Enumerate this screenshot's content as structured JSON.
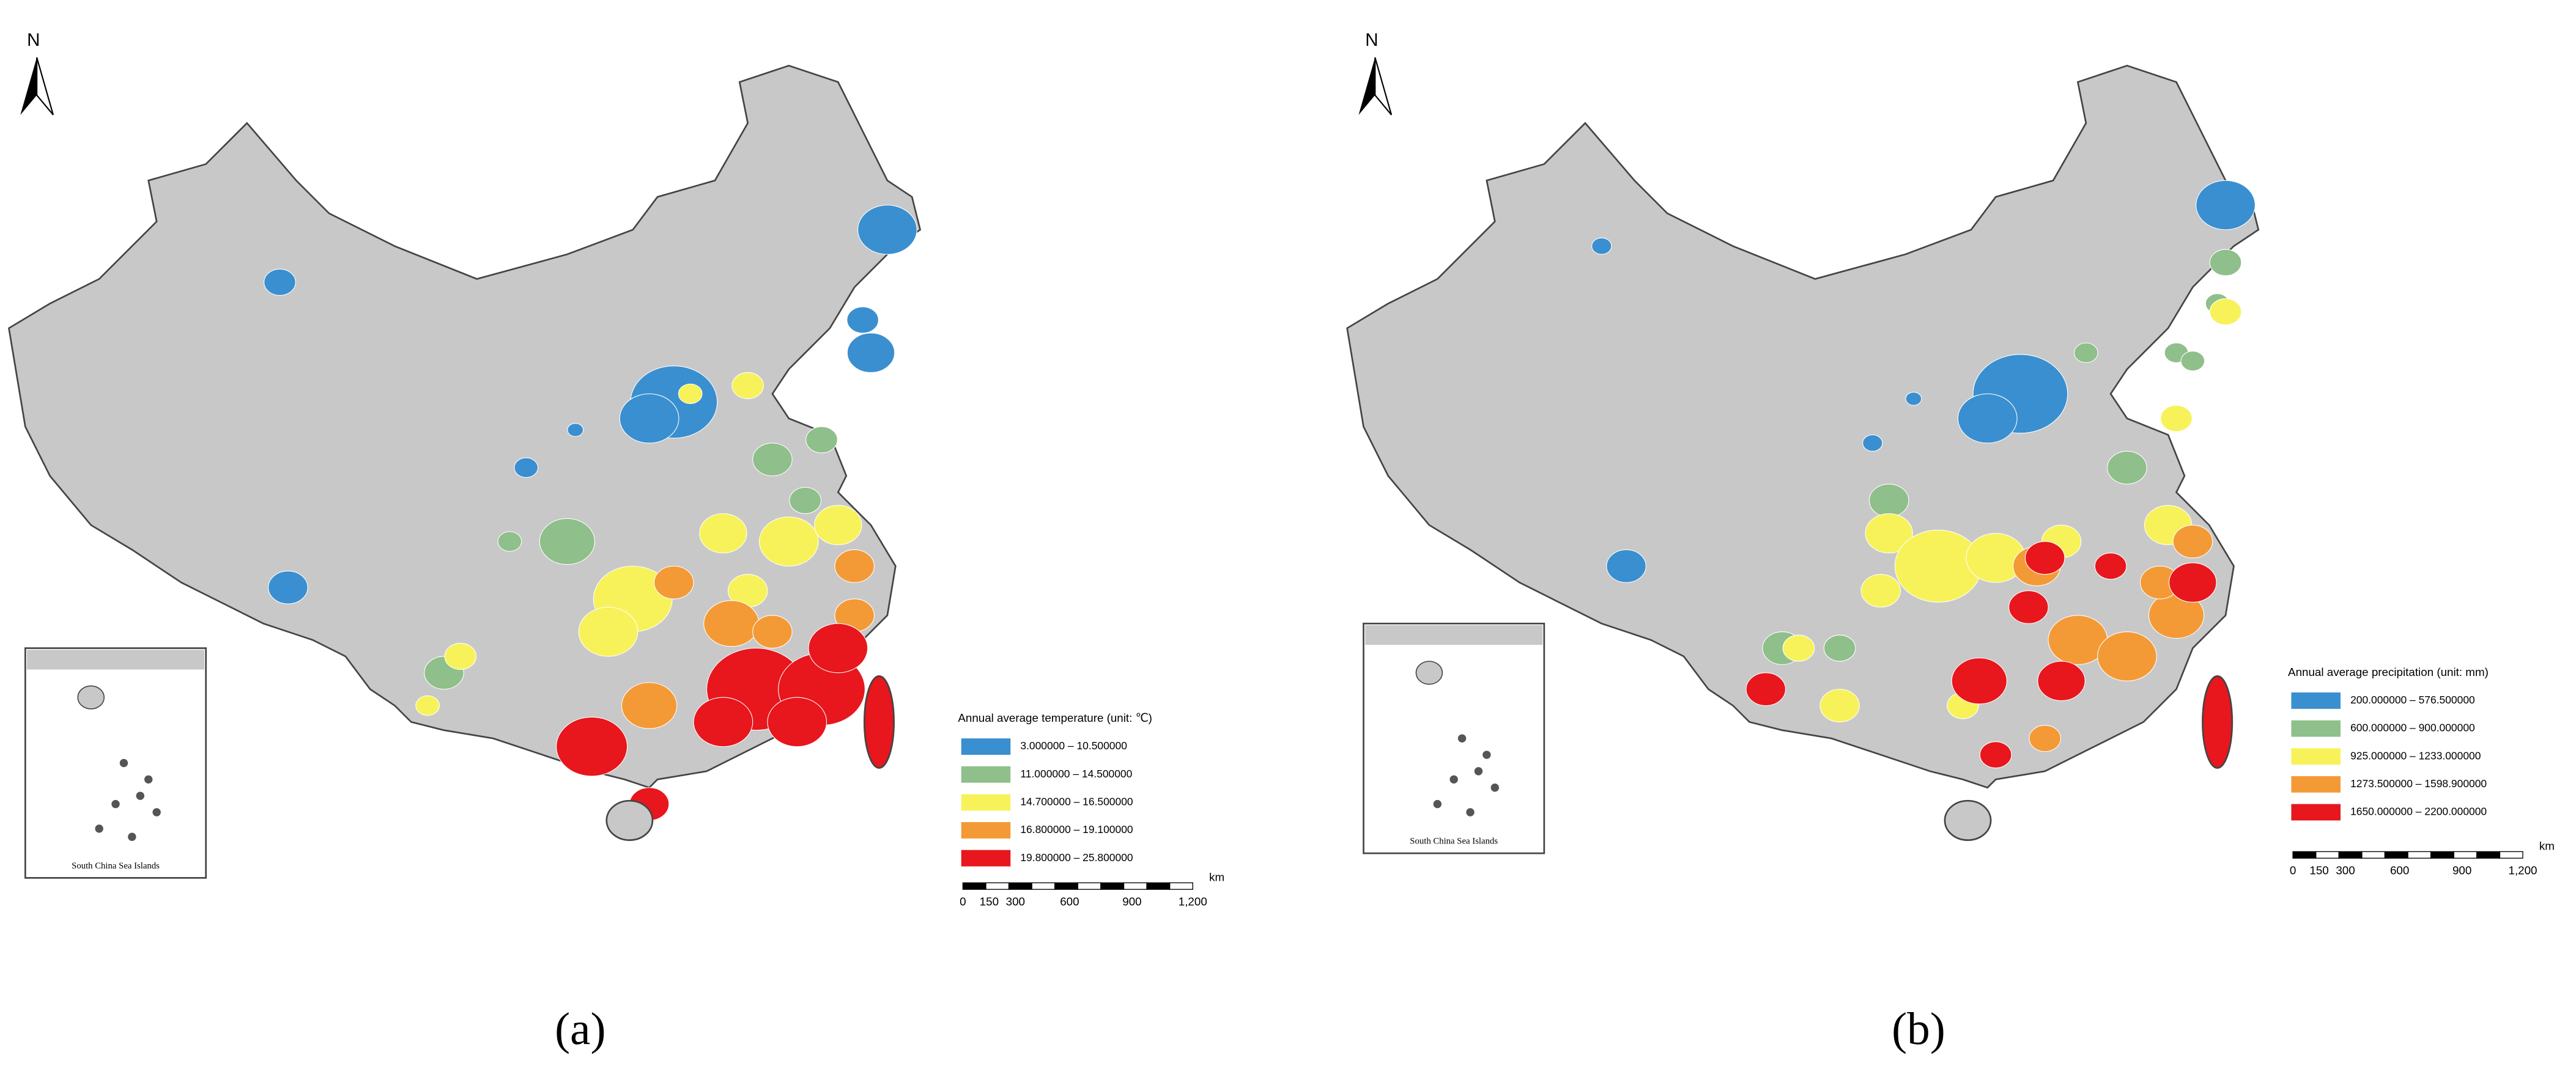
{
  "panels": [
    {
      "north": "N",
      "inset_label": "South China Sea Islands",
      "legend": {
        "title": "Annual average temperature (unit: ℃)",
        "items": [
          {
            "label": "3.000000 – 10.500000",
            "color": "#3a8fd0"
          },
          {
            "label": "11.000000 – 14.500000",
            "color": "#8fbf8a"
          },
          {
            "label": "14.700000 – 16.500000",
            "color": "#f7f25a"
          },
          {
            "label": "16.800000 – 19.100000",
            "color": "#f39a36"
          },
          {
            "label": "19.800000 – 25.800000",
            "color": "#e8161d"
          }
        ]
      },
      "scale_bar": {
        "labels": [
          "0",
          "150",
          "300",
          "600",
          "900",
          "1,200"
        ],
        "unit": "km"
      },
      "caption": "(a)"
    },
    {
      "north": "N",
      "inset_label": "South China Sea Islands",
      "legend": {
        "title": "Annual average precipitation (unit: mm)",
        "items": [
          {
            "label": "200.000000 – 576.500000",
            "color": "#3a8fd0"
          },
          {
            "label": "600.000000 – 900.000000",
            "color": "#8fbf8a"
          },
          {
            "label": "925.000000 – 1233.000000",
            "color": "#f7f25a"
          },
          {
            "label": "1273.500000 – 1598.900000",
            "color": "#f39a36"
          },
          {
            "label": "1650.000000 – 2200.000000",
            "color": "#e8161d"
          }
        ]
      },
      "scale_bar": {
        "labels": [
          "0",
          "150",
          "300",
          "600",
          "900",
          "1,200"
        ],
        "unit": "km"
      },
      "caption": "(b)"
    }
  ]
}
